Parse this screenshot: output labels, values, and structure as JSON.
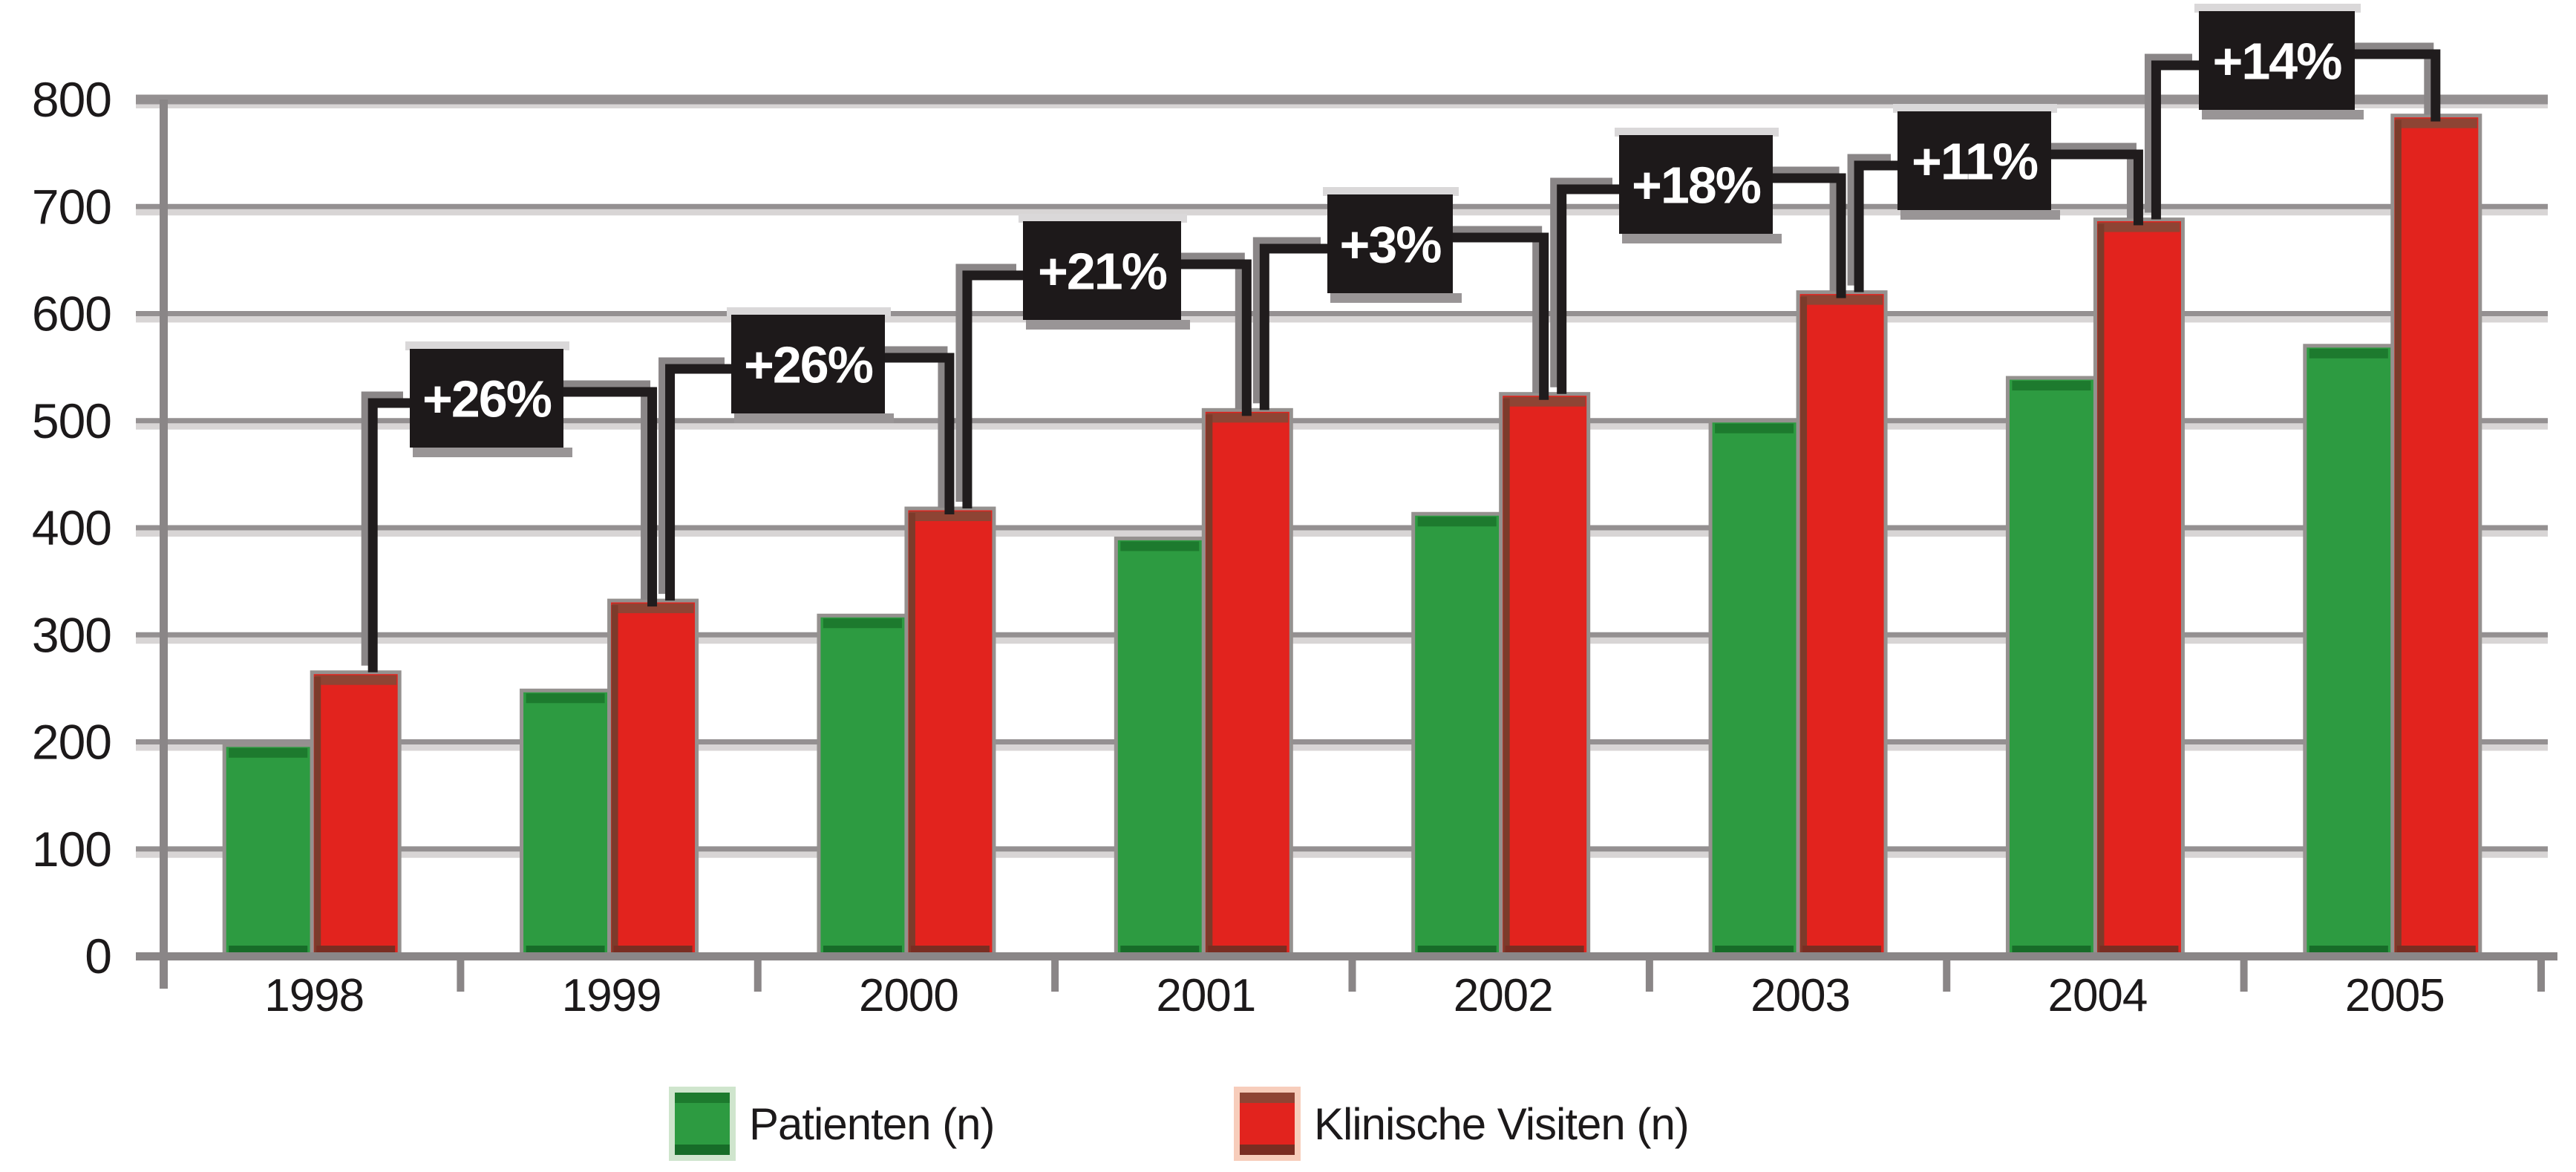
{
  "chart_data": {
    "type": "bar",
    "title": "",
    "xlabel": "",
    "ylabel": "",
    "categories": [
      "1998",
      "1999",
      "2000",
      "2001",
      "2002",
      "2003",
      "2004",
      "2005"
    ],
    "series": [
      {
        "name": "Patienten (n)",
        "color": "#2d9b41",
        "values": [
          197,
          248,
          318,
          390,
          413,
          500,
          540,
          570
        ]
      },
      {
        "name": "Klinische Visiten (n)",
        "color": "#e2231e",
        "values": [
          265,
          332,
          418,
          510,
          525,
          620,
          688,
          785
        ]
      }
    ],
    "annotations": [
      {
        "from": "1998",
        "to": "1999",
        "label": "+26%"
      },
      {
        "from": "1999",
        "to": "2000",
        "label": "+26%"
      },
      {
        "from": "2000",
        "to": "2001",
        "label": "+21%"
      },
      {
        "from": "2001",
        "to": "2002",
        "label": "+3%"
      },
      {
        "from": "2002",
        "to": "2003",
        "label": "+18%"
      },
      {
        "from": "2003",
        "to": "2004",
        "label": "+11%"
      },
      {
        "from": "2004",
        "to": "2005",
        "label": "+14%"
      }
    ],
    "y_axis": {
      "min": 0,
      "max": 800,
      "step": 100,
      "tick_labels": [
        "0",
        "100",
        "200",
        "300",
        "400",
        "500",
        "600",
        "700",
        "800"
      ]
    },
    "grid": "horizontal",
    "legend_position": "bottom"
  },
  "legend": {
    "items": [
      {
        "label": "Patienten (n)",
        "swatch": "green-swatch"
      },
      {
        "label": "Klinische Visiten (n)",
        "swatch": "red-swatch"
      }
    ]
  },
  "colors": {
    "green": "#2d9b41",
    "green_dark": "#1d7a2e",
    "green_deep": "#176c28",
    "red": "#e2231e",
    "red_cap": "#8e4434",
    "red_edge": "#7c3b2b",
    "red_deep": "#7a2d22",
    "bar_stroke": "#95918f",
    "axis_gray": "#8a8687",
    "grid_gray": "#949091",
    "grid_light": "#d8d5d5",
    "box_bg": "#1d191a",
    "box_highlight": "#dad8d9",
    "box_shadow": "#999596",
    "line_black": "#201c1d",
    "line_shadow": "#8a8687",
    "text": "#1c191a",
    "label_white": "#ffffff"
  }
}
